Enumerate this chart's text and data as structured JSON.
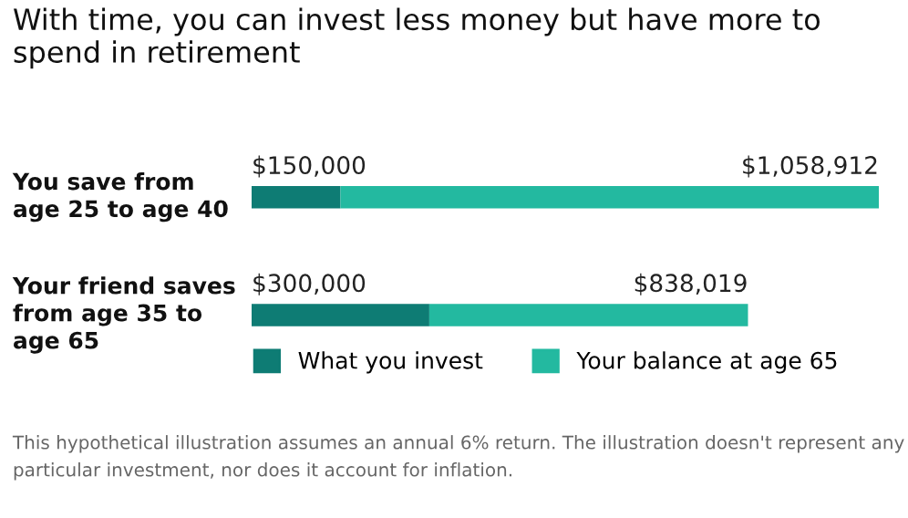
{
  "chart_data": {
    "type": "bar",
    "orientation": "horizontal",
    "stacked": true,
    "title": "With time, you can invest less money but have more to spend in retirement",
    "categories": [
      "You save from\nage 25 to age 40",
      "Your friend saves\nfrom age 35 to\nage 65"
    ],
    "series": [
      {
        "name": "What you invest",
        "color": "#0e7c74",
        "values": [
          150000,
          300000
        ],
        "value_labels": [
          "$150,000",
          "$300,000"
        ]
      },
      {
        "name": "Your balance at age 65",
        "color": "#23b9a0",
        "values": [
          908912,
          538019
        ]
      }
    ],
    "totals": [
      "$1,058,912",
      "$838,019"
    ],
    "legend": "bottom",
    "grid": false,
    "annotations": [
      "This hypothetical illustration assumes an annual 6% return. The illustration doesn't represent any particular investment, nor does it account for inflation."
    ]
  }
}
